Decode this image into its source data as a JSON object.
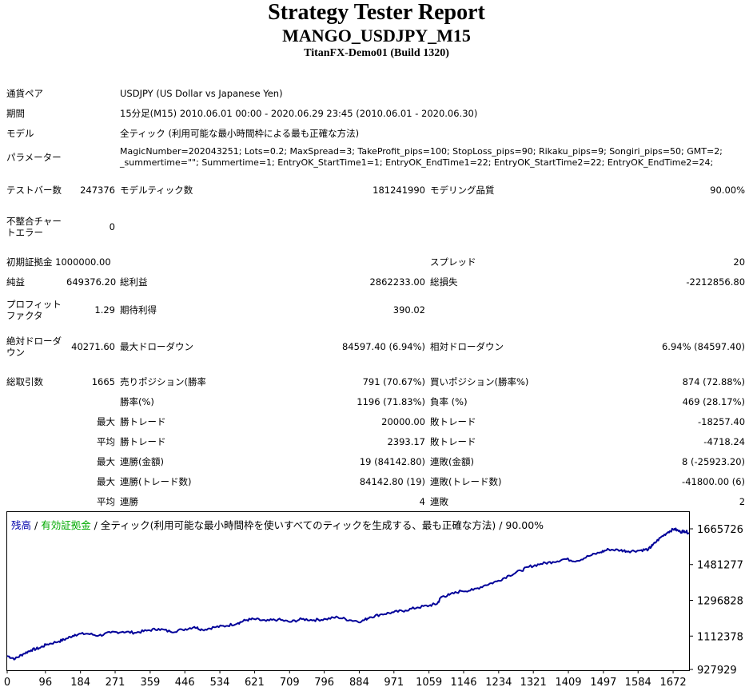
{
  "header": {
    "title": "Strategy Tester Report",
    "subtitle": "MANGO_USDJPY_M15",
    "server": "TitanFX-Demo01 (Build 1320)"
  },
  "info": {
    "symbol_label": "通貨ペア",
    "symbol_value": "USDJPY (US Dollar vs Japanese Yen)",
    "period_label": "期間",
    "period_value": "15分足(M15) 2010.06.01 00:00 - 2020.06.29 23:45 (2010.06.01 - 2020.06.30)",
    "model_label": "モデル",
    "model_value": "全ティック (利用可能な最小時間枠による最も正確な方法)",
    "params_label": "パラメーター",
    "params_value": "MagicNumber=202043251; Lots=0.2; MaxSpread=3; TakeProfit_pips=100; StopLoss_pips=90; Rikaku_pips=9; Songiri_pips=50; GMT=2; _summertime=\"\"; Summertime=1; EntryOK_StartTime1=1; EntryOK_EndTime1=22; EntryOK_StartTime2=22; EntryOK_EndTime2=24;"
  },
  "stats": {
    "bars_label": "テストバー数",
    "bars_value": "247376",
    "ticks_label": "モデルティック数",
    "ticks_value": "181241990",
    "quality_label": "モデリング品質",
    "quality_value": "90.00%",
    "mismatch_label": "不整合チャートエラー",
    "mismatch_value": "0",
    "deposit_label": "初期証拠金",
    "deposit_value": "1000000.00",
    "spread_label": "スプレッド",
    "spread_value": "20",
    "net_label": "純益",
    "net_value": "649376.20",
    "gross_profit_label": "総利益",
    "gross_profit_value": "2862233.00",
    "gross_loss_label": "総損失",
    "gross_loss_value": "-2212856.80",
    "pf_label": "プロフィットファクタ",
    "pf_value": "1.29",
    "expected_label": "期待利得",
    "expected_value": "390.02",
    "abs_dd_label": "絶対ドローダウン",
    "abs_dd_value": "40271.60",
    "max_dd_label": "最大ドローダウン",
    "max_dd_value": "84597.40 (6.94%)",
    "rel_dd_label": "相対ドローダウン",
    "rel_dd_value": "6.94% (84597.40)",
    "trades_label": "総取引数",
    "trades_value": "1665",
    "short_label": "売りポジション(勝率%)",
    "short_value": "791 (70.67%)",
    "long_label": "買いポジション(勝率%)",
    "long_value": "874 (72.88%)",
    "winrate_label": "勝率(%)",
    "winrate_value": "1196 (71.83%)",
    "lossrate_label": "負率 (%)",
    "lossrate_value": "469 (28.17%)",
    "max_label": "最大",
    "avg_label": "平均",
    "max_win_label": "勝トレード",
    "max_win_value": "20000.00",
    "max_loss_label": "敗トレード",
    "max_loss_value": "-18257.40",
    "avg_win_label": "勝トレード",
    "avg_win_value": "2393.17",
    "avg_loss_label": "敗トレード",
    "avg_loss_value": "-4718.24",
    "consec_wins_money_label": "連勝(金額)",
    "consec_wins_money_value": "19 (84142.80)",
    "consec_losses_money_label": "連敗(金額)",
    "consec_losses_money_value": "8 (-25923.20)",
    "consec_wins_trades_label": "連勝(トレード数)",
    "consec_wins_trades_value": "84142.80 (19)",
    "consec_losses_trades_label": "連敗(トレード数)",
    "consec_losses_trades_value": "-41800.00 (6)",
    "avg_wins_label": "連勝",
    "avg_wins_value": "4",
    "avg_losses_label": "連敗",
    "avg_losses_value": "2"
  },
  "legend": {
    "balance": "残高",
    "sep1": " / ",
    "equity": "有効証拠金",
    "rest": " / 全ティック(利用可能な最小時間枠を使いすべてのティックを生成する、最も正確な方法) / 90.00%",
    "balance_color": "#0000aa",
    "equity_color": "#00aa00"
  },
  "chart_data": {
    "type": "line",
    "xticks": [
      0,
      96,
      184,
      271,
      359,
      446,
      534,
      621,
      709,
      796,
      884,
      971,
      1059,
      1146,
      1234,
      1321,
      1409,
      1497,
      1584,
      1672
    ],
    "yticks": [
      927929,
      1112378,
      1296828,
      1481277,
      1665726
    ],
    "xlim": [
      0,
      1712
    ],
    "ylim": [
      927929,
      1665726
    ],
    "series": [
      {
        "color": "#000099",
        "x": [
          0,
          20,
          40,
          60,
          80,
          100,
          130,
          150,
          170,
          200,
          230,
          260,
          290,
          320,
          350,
          380,
          410,
          440,
          470,
          490,
          520,
          550,
          580,
          600,
          620,
          650,
          680,
          710,
          740,
          770,
          800,
          830,
          860,
          890,
          910,
          940,
          970,
          1000,
          1030,
          1060,
          1080,
          1090,
          1110,
          1140,
          1170,
          1200,
          1230,
          1260,
          1290,
          1310,
          1340,
          1370,
          1400,
          1430,
          1460,
          1490,
          1510,
          1540,
          1560,
          1590,
          1610,
          1620,
          1640,
          1660,
          1675,
          1690,
          1700,
          1712
        ],
        "y": [
          1010000,
          995000,
          1020000,
          1040000,
          1050000,
          1070000,
          1085000,
          1100000,
          1120000,
          1125000,
          1115000,
          1130000,
          1135000,
          1130000,
          1140000,
          1150000,
          1135000,
          1145000,
          1160000,
          1145000,
          1158000,
          1165000,
          1180000,
          1195000,
          1200000,
          1190000,
          1198000,
          1185000,
          1200000,
          1195000,
          1200000,
          1210000,
          1195000,
          1188000,
          1210000,
          1225000,
          1235000,
          1245000,
          1260000,
          1270000,
          1280000,
          1315000,
          1325000,
          1345000,
          1350000,
          1375000,
          1395000,
          1425000,
          1450000,
          1470000,
          1485000,
          1495000,
          1510000,
          1500000,
          1525000,
          1545000,
          1560000,
          1555000,
          1550000,
          1555000,
          1560000,
          1580000,
          1620000,
          1650000,
          1665726,
          1650000,
          1655000,
          1645000
        ]
      }
    ]
  }
}
